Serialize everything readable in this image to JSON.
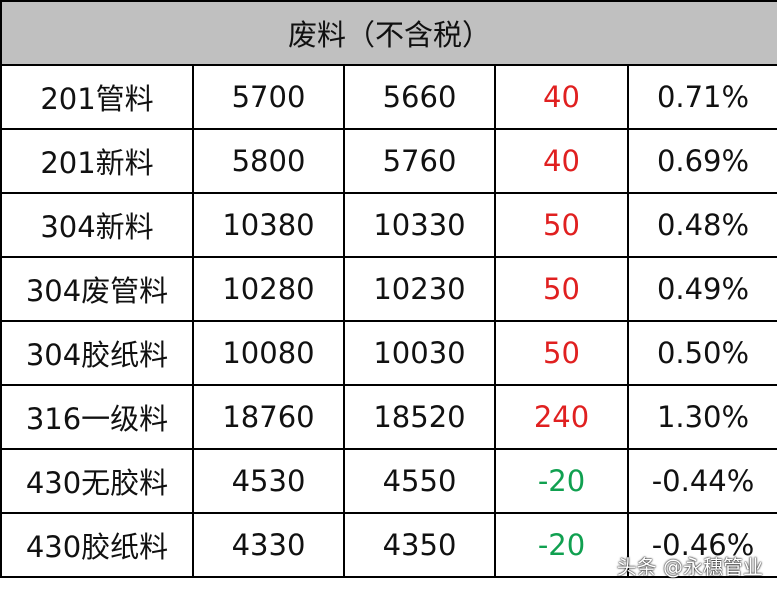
{
  "title": "废料（不含税）",
  "colors": {
    "increase": "#e02020",
    "decrease": "#10a050",
    "header_bg": "#c0c0c0"
  },
  "rows": [
    {
      "name": "201管料",
      "a": "5700",
      "b": "5660",
      "change": "40",
      "pct": "0.71%",
      "dir": "up"
    },
    {
      "name": "201新料",
      "a": "5800",
      "b": "5760",
      "change": "40",
      "pct": "0.69%",
      "dir": "up"
    },
    {
      "name": "304新料",
      "a": "10380",
      "b": "10330",
      "change": "50",
      "pct": "0.48%",
      "dir": "up"
    },
    {
      "name": "304废管料",
      "a": "10280",
      "b": "10230",
      "change": "50",
      "pct": "0.49%",
      "dir": "up"
    },
    {
      "name": "304胶纸料",
      "a": "10080",
      "b": "10030",
      "change": "50",
      "pct": "0.50%",
      "dir": "up"
    },
    {
      "name": "316一级料",
      "a": "18760",
      "b": "18520",
      "change": "240",
      "pct": "1.30%",
      "dir": "up"
    },
    {
      "name": "430无胶料",
      "a": "4530",
      "b": "4550",
      "change": "-20",
      "pct": "-0.44%",
      "dir": "down"
    },
    {
      "name": "430胶纸料",
      "a": "4330",
      "b": "4350",
      "change": "-20",
      "pct": "-0.46%",
      "dir": "down"
    }
  ],
  "watermark": "头条 @永穗管业"
}
